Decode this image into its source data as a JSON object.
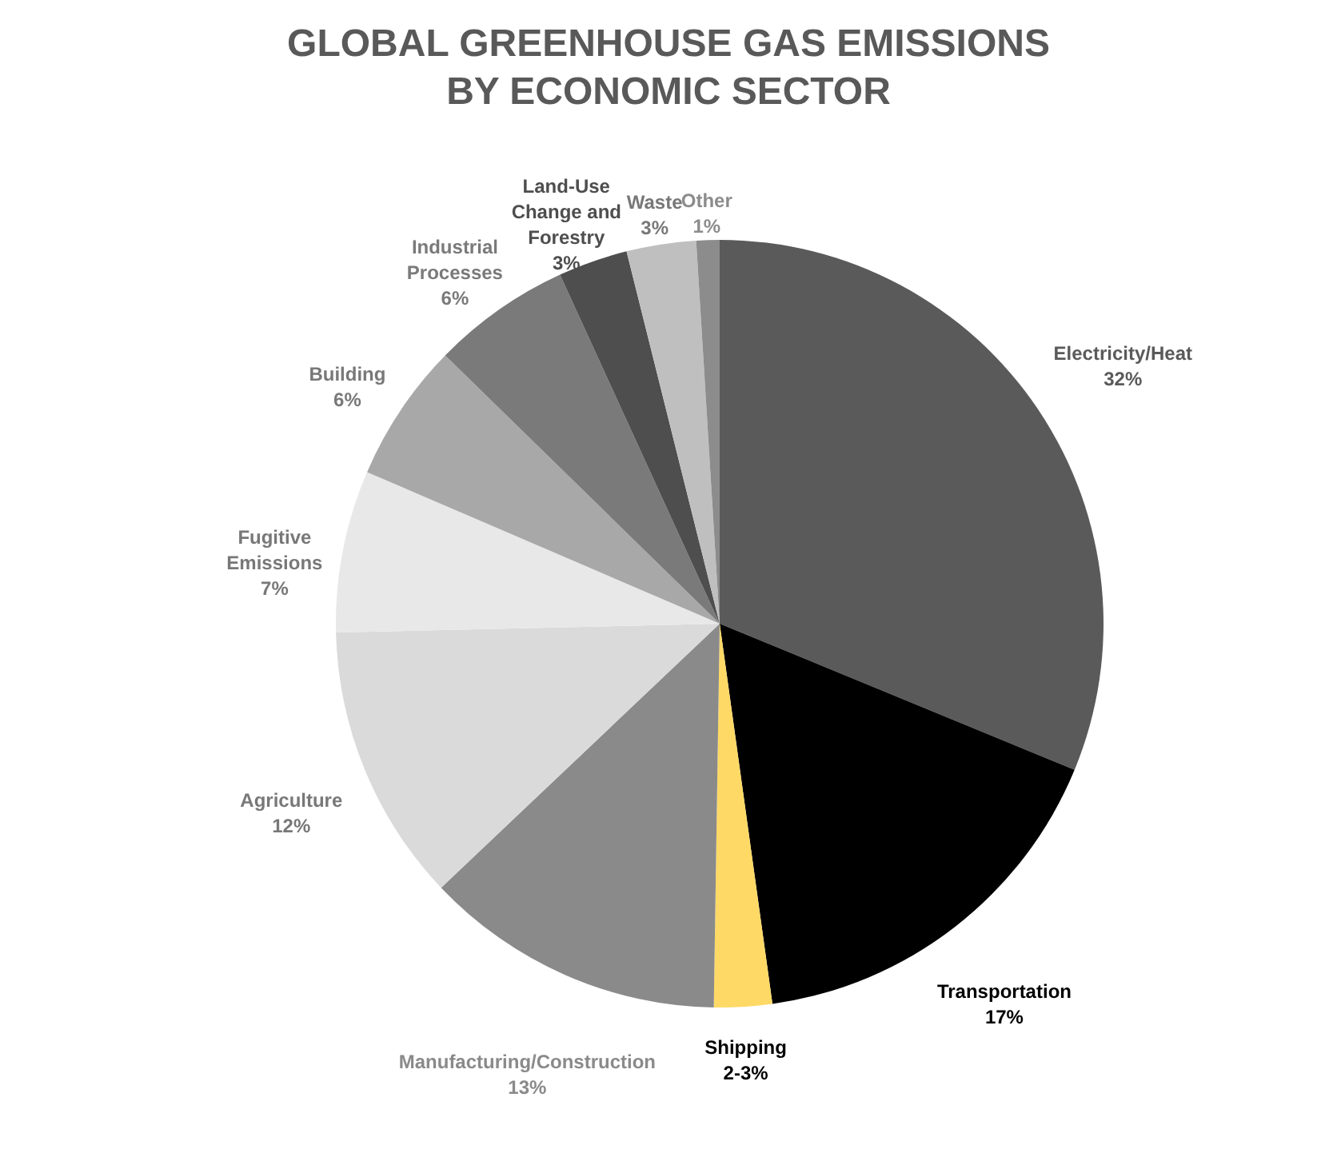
{
  "chart_data": {
    "type": "pie",
    "title": "GLOBAL GREENHOUSE GAS EMISSIONS BY ECONOMIC SECTOR",
    "categories": [
      "Electricity/Heat",
      "Transportation",
      "Shipping",
      "Manufacturing/Construction",
      "Agriculture",
      "Fugitive Emissions",
      "Building",
      "Industrial Processes",
      "Land-Use Change and Forestry",
      "Waste",
      "Other"
    ],
    "values": [
      32,
      17,
      2.5,
      13,
      12,
      7,
      6,
      6,
      3,
      3,
      1
    ],
    "value_labels": [
      "32%",
      "17%",
      "2-3%",
      "13%",
      "12%",
      "7%",
      "6%",
      "6%",
      "3%",
      "3%",
      "1%"
    ],
    "colors": [
      "#5a5a5a",
      "#000000",
      "#ffd966",
      "#8a8a8a",
      "#dadada",
      "#e8e8e8",
      "#a8a8a8",
      "#7a7a7a",
      "#4e4e4e",
      "#bfbfbf",
      "#8c8c8c"
    ],
    "legend": false
  }
}
